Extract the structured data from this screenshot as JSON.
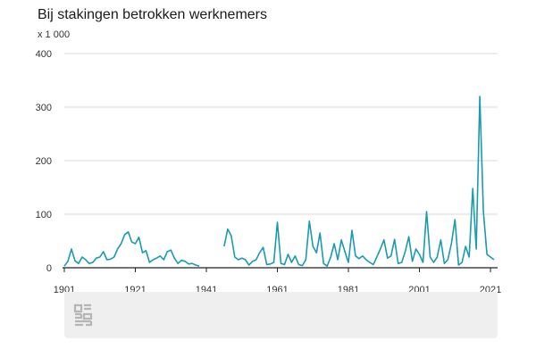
{
  "chart_data": {
    "type": "line",
    "title": "Bij stakingen betrokken werknemers",
    "unit_label": "x 1 000",
    "ylim": [
      0,
      400
    ],
    "y_ticks": [
      "0",
      "100",
      "200",
      "300",
      "400"
    ],
    "x_ticks": [
      "1901",
      "1921",
      "1941",
      "1961",
      "1981",
      "2001",
      "2021"
    ],
    "xlim": [
      1901,
      2023
    ],
    "grid": "horizontal",
    "color": "#1a9bb0",
    "series": [
      {
        "values": [
          [
            1901,
            3
          ],
          [
            1902,
            12
          ],
          [
            1903,
            35
          ],
          [
            1904,
            13
          ],
          [
            1905,
            8
          ],
          [
            1906,
            20
          ],
          [
            1907,
            15
          ],
          [
            1908,
            8
          ],
          [
            1909,
            10
          ],
          [
            1910,
            18
          ],
          [
            1911,
            20
          ],
          [
            1912,
            30
          ],
          [
            1913,
            15
          ],
          [
            1914,
            16
          ],
          [
            1915,
            20
          ],
          [
            1916,
            35
          ],
          [
            1917,
            45
          ],
          [
            1918,
            62
          ],
          [
            1919,
            67
          ],
          [
            1920,
            48
          ],
          [
            1921,
            45
          ],
          [
            1922,
            57
          ],
          [
            1923,
            28
          ],
          [
            1924,
            32
          ],
          [
            1925,
            10
          ],
          [
            1926,
            15
          ],
          [
            1927,
            18
          ],
          [
            1928,
            22
          ],
          [
            1929,
            15
          ],
          [
            1930,
            30
          ],
          [
            1931,
            33
          ],
          [
            1932,
            18
          ],
          [
            1933,
            8
          ],
          [
            1934,
            14
          ],
          [
            1935,
            12
          ],
          [
            1936,
            7
          ],
          [
            1937,
            8
          ],
          [
            1938,
            5
          ],
          [
            1939,
            3
          ],
          [
            1940,
            null
          ],
          [
            1941,
            null
          ],
          [
            1942,
            null
          ],
          [
            1943,
            null
          ],
          [
            1944,
            null
          ],
          [
            1945,
            null
          ],
          [
            1946,
            40
          ],
          [
            1947,
            72
          ],
          [
            1948,
            60
          ],
          [
            1949,
            20
          ],
          [
            1950,
            15
          ],
          [
            1951,
            18
          ],
          [
            1952,
            15
          ],
          [
            1953,
            5
          ],
          [
            1954,
            12
          ],
          [
            1955,
            15
          ],
          [
            1956,
            28
          ],
          [
            1957,
            38
          ],
          [
            1958,
            6
          ],
          [
            1959,
            7
          ],
          [
            1960,
            10
          ],
          [
            1961,
            85
          ],
          [
            1962,
            8
          ],
          [
            1963,
            6
          ],
          [
            1964,
            25
          ],
          [
            1965,
            10
          ],
          [
            1966,
            22
          ],
          [
            1967,
            6
          ],
          [
            1968,
            4
          ],
          [
            1969,
            15
          ],
          [
            1970,
            87
          ],
          [
            1971,
            40
          ],
          [
            1972,
            28
          ],
          [
            1973,
            65
          ],
          [
            1974,
            8
          ],
          [
            1975,
            3
          ],
          [
            1976,
            20
          ],
          [
            1977,
            45
          ],
          [
            1978,
            15
          ],
          [
            1979,
            52
          ],
          [
            1980,
            30
          ],
          [
            1981,
            10
          ],
          [
            1982,
            70
          ],
          [
            1983,
            22
          ],
          [
            1984,
            17
          ],
          [
            1985,
            22
          ],
          [
            1986,
            15
          ],
          [
            1987,
            10
          ],
          [
            1988,
            6
          ],
          [
            1989,
            20
          ],
          [
            1990,
            35
          ],
          [
            1991,
            52
          ],
          [
            1992,
            18
          ],
          [
            1993,
            22
          ],
          [
            1994,
            53
          ],
          [
            1995,
            8
          ],
          [
            1996,
            10
          ],
          [
            1997,
            30
          ],
          [
            1998,
            58
          ],
          [
            1999,
            12
          ],
          [
            2000,
            35
          ],
          [
            2001,
            25
          ],
          [
            2002,
            10
          ],
          [
            2003,
            105
          ],
          [
            2004,
            20
          ],
          [
            2005,
            10
          ],
          [
            2006,
            20
          ],
          [
            2007,
            52
          ],
          [
            2008,
            8
          ],
          [
            2009,
            15
          ],
          [
            2010,
            45
          ],
          [
            2011,
            90
          ],
          [
            2012,
            5
          ],
          [
            2013,
            10
          ],
          [
            2014,
            40
          ],
          [
            2015,
            20
          ],
          [
            2016,
            148
          ],
          [
            2017,
            35
          ],
          [
            2018,
            320
          ],
          [
            2019,
            105
          ],
          [
            2020,
            25
          ],
          [
            2021,
            20
          ],
          [
            2022,
            15
          ]
        ]
      }
    ]
  }
}
